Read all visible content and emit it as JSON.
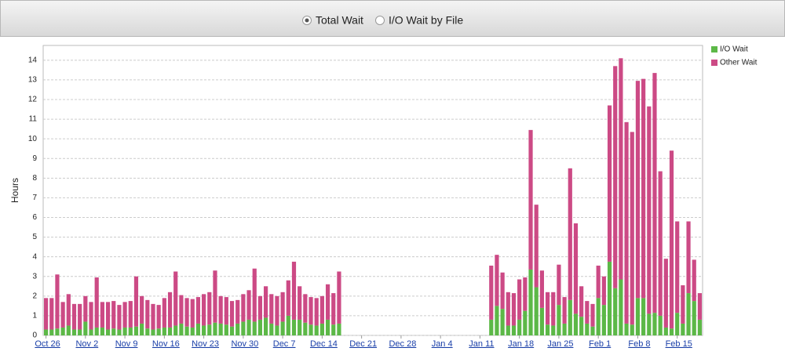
{
  "toggle": {
    "options": [
      "Total Wait",
      "I/O Wait by File"
    ],
    "selected": 0
  },
  "chart_data": {
    "type": "stacked_bar",
    "y_label": "Hours",
    "categories": [
      "Oct 26",
      null,
      null,
      null,
      null,
      null,
      null,
      "Nov 2",
      null,
      null,
      null,
      null,
      null,
      null,
      "Nov 9",
      null,
      null,
      null,
      null,
      null,
      null,
      "Nov 16",
      null,
      null,
      null,
      null,
      null,
      null,
      "Nov 23",
      null,
      null,
      null,
      null,
      null,
      null,
      "Nov 30",
      null,
      null,
      null,
      null,
      null,
      null,
      "Dec 7",
      null,
      null,
      null,
      null,
      null,
      null,
      "Dec 14",
      null,
      null,
      null,
      null,
      null,
      null,
      "Dec 21",
      null,
      null,
      null,
      null,
      null,
      null,
      "Dec 28",
      null,
      null,
      null,
      null,
      null,
      null,
      "Jan 4",
      null,
      null,
      null,
      null,
      null,
      null,
      "Jan 11",
      null,
      null,
      null,
      null,
      null,
      null,
      "Jan 18",
      null,
      null,
      null,
      null,
      null,
      null,
      "Jan 25",
      null,
      null,
      null,
      null,
      null,
      null,
      "Feb 1",
      null,
      null,
      null,
      null,
      null,
      null,
      "Feb 8",
      null,
      null,
      null,
      null,
      null,
      null,
      "Feb 15",
      null,
      null,
      null,
      null
    ],
    "series": [
      {
        "name": "I/O Wait",
        "color": "#5cb847",
        "values": [
          0.3,
          0.3,
          0.35,
          0.4,
          0.5,
          0.3,
          0.3,
          0.7,
          0.3,
          0.4,
          0.4,
          0.3,
          0.35,
          0.3,
          0.4,
          0.4,
          0.45,
          0.6,
          0.35,
          0.3,
          0.35,
          0.4,
          0.4,
          0.5,
          0.6,
          0.45,
          0.4,
          0.6,
          0.5,
          0.55,
          0.65,
          0.6,
          0.55,
          0.45,
          0.6,
          0.7,
          0.8,
          0.7,
          0.8,
          0.9,
          0.6,
          0.5,
          0.7,
          1.0,
          0.8,
          0.8,
          0.65,
          0.55,
          0.5,
          0.6,
          0.8,
          0.55,
          0.6,
          0,
          0,
          0,
          0,
          0,
          0,
          0,
          0,
          0,
          0,
          0,
          0,
          0,
          0,
          0,
          0,
          0,
          0,
          0,
          0,
          0,
          0,
          0,
          0,
          0,
          0,
          0.8,
          1.5,
          1.35,
          0.5,
          0.5,
          0.8,
          1.25,
          3.35,
          2.45,
          1.4,
          0.55,
          0.5,
          1.55,
          0.6,
          1.8,
          1.1,
          0.95,
          0.6,
          0.45,
          1.9,
          1.55,
          3.75,
          2.4,
          2.85,
          0.6,
          0.55,
          1.9,
          1.9,
          1.1,
          1.15,
          1.0,
          0.4,
          0.35,
          1.15,
          0.6,
          2.15,
          1.75,
          0.8
        ]
      },
      {
        "name": "Other Wait",
        "color": "#cc4a85",
        "values": [
          1.6,
          1.6,
          2.75,
          1.3,
          1.6,
          1.3,
          1.3,
          1.3,
          1.4,
          2.55,
          1.3,
          1.4,
          1.4,
          1.25,
          1.3,
          1.35,
          2.55,
          1.4,
          1.45,
          1.3,
          1.2,
          1.5,
          1.8,
          2.75,
          1.45,
          1.45,
          1.45,
          1.35,
          1.6,
          1.65,
          2.65,
          1.4,
          1.4,
          1.3,
          1.2,
          1.4,
          1.5,
          2.7,
          1.2,
          1.6,
          1.5,
          1.5,
          1.5,
          1.8,
          2.95,
          1.7,
          1.45,
          1.4,
          1.4,
          1.4,
          1.8,
          1.6,
          2.65,
          0,
          0,
          0,
          0,
          0,
          0,
          0,
          0,
          0,
          0,
          0,
          0,
          0,
          0,
          0,
          0,
          0,
          0,
          0,
          0,
          0,
          0,
          0,
          0,
          0,
          0,
          2.75,
          2.6,
          1.85,
          1.7,
          1.65,
          2.05,
          1.7,
          7.1,
          4.2,
          1.9,
          1.65,
          1.7,
          2.05,
          1.35,
          6.7,
          4.6,
          1.55,
          1.15,
          1.15,
          1.65,
          1.45,
          7.95,
          11.3,
          11.25,
          10.25,
          9.8,
          11.05,
          11.15,
          10.55,
          12.2,
          7.35,
          3.5,
          9.05,
          4.65,
          1.95,
          3.65,
          2.1,
          1.35
        ]
      }
    ],
    "ylim": [
      0,
      14.75
    ],
    "yticks": [
      0,
      1,
      2,
      3,
      4,
      5,
      6,
      7,
      8,
      9,
      10,
      11,
      12,
      13,
      14
    ],
    "grid": true,
    "legend": "right"
  }
}
